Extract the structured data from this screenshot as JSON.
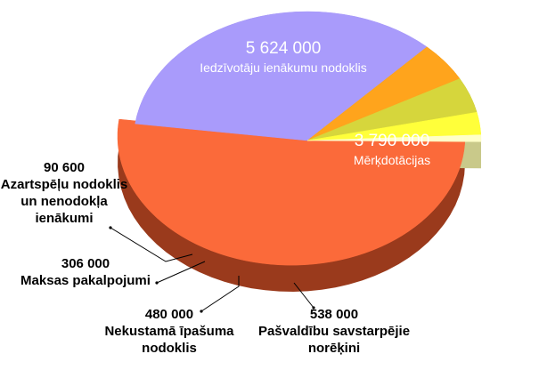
{
  "chart_data": {
    "type": "pie",
    "title": "",
    "legend": "none",
    "labels_position": "on-slice and outside with leader lines",
    "slices": [
      {
        "name": "Iedzīvotāju ienākumu nodoklis",
        "value": 5624000,
        "display": "5 624 000",
        "label_lines": [
          "Iedzīvotāju ienākumu nodoklis"
        ],
        "color": "#fb6a3a",
        "side_color": "#9a3a1c",
        "exploded": true
      },
      {
        "name": "Mērķdotācijas",
        "value": 3790000,
        "display": "3 790 000",
        "label_lines": [
          "Mērķdotācijas"
        ],
        "color": "#a99bfb",
        "side_color": "#6f62c4",
        "exploded": false
      },
      {
        "name": "Pašvaldību savstarpējie norēķini",
        "value": 538000,
        "display": "538 000",
        "label_lines": [
          "Pašvaldību savstarpējie",
          "norēķini"
        ],
        "color": "#ffa41c",
        "side_color": "#b86f00",
        "exploded": false
      },
      {
        "name": "Nekustamā īpašuma nodoklis",
        "value": 480000,
        "display": "480 000",
        "label_lines": [
          "Nekustamā īpašuma",
          "nodoklis"
        ],
        "color": "#d6d63c",
        "side_color": "#8f8f1a",
        "exploded": false
      },
      {
        "name": "Maksas pakalpojumi",
        "value": 306000,
        "display": "306 000",
        "label_lines": [
          "Maksas pakalpojumi"
        ],
        "color": "#ffff3a",
        "side_color": "#b5b514",
        "exploded": false
      },
      {
        "name": "Azartspēļu nodoklis un nenodokļa ienākumi",
        "value": 90600,
        "display": "90 600",
        "label_lines": [
          "Azartspēļu nodoklis",
          "un nenodokļa",
          "ienākumi"
        ],
        "color": "#ffffc8",
        "side_color": "#c9c98a",
        "exploded": false
      }
    ]
  }
}
